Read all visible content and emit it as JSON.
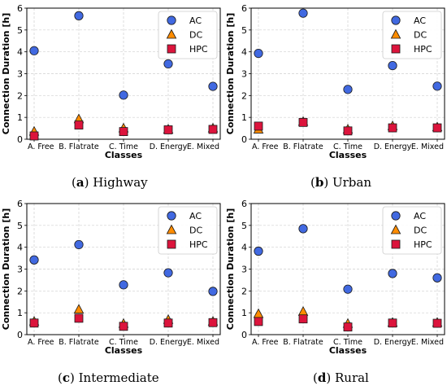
{
  "chart_data": [
    {
      "type": "scatter",
      "caption_letter": "a",
      "caption_name": "Highway",
      "title": "",
      "xlabel": "Classes",
      "ylabel": "Connection Duration [h]",
      "categories": [
        "A. Free",
        "B. Flatrate",
        "C. Time",
        "D. Energy",
        "E. Mixed"
      ],
      "ylim": [
        0,
        6
      ],
      "yticks": [
        0,
        1,
        2,
        3,
        4,
        5,
        6
      ],
      "grid": true,
      "legend_position": "top-right",
      "series": [
        {
          "name": "AC",
          "marker": "circle",
          "color": "#4169e1",
          "values": [
            4.05,
            5.65,
            2.02,
            3.45,
            2.42
          ]
        },
        {
          "name": "DC",
          "marker": "triangle",
          "color": "#ff8c00",
          "values": [
            0.35,
            0.92,
            0.5,
            0.45,
            0.5
          ]
        },
        {
          "name": "HPC",
          "marker": "square",
          "color": "#dc143c",
          "values": [
            0.15,
            0.65,
            0.35,
            0.43,
            0.45
          ]
        }
      ]
    },
    {
      "type": "scatter",
      "caption_letter": "b",
      "caption_name": "Urban",
      "title": "",
      "xlabel": "Classes",
      "ylabel": "Connection Duration [h]",
      "categories": [
        "A. Free",
        "B. Flatrate",
        "C. Time",
        "D. Energy",
        "E. Mixed"
      ],
      "ylim": [
        0,
        6
      ],
      "yticks": [
        0,
        1,
        2,
        3,
        4,
        5,
        6
      ],
      "grid": true,
      "legend_position": "top-right",
      "series": [
        {
          "name": "AC",
          "marker": "circle",
          "color": "#4169e1",
          "values": [
            3.93,
            5.77,
            2.28,
            3.37,
            2.43
          ]
        },
        {
          "name": "DC",
          "marker": "triangle",
          "color": "#ff8c00",
          "values": [
            0.45,
            0.8,
            0.45,
            0.6,
            0.55
          ]
        },
        {
          "name": "HPC",
          "marker": "square",
          "color": "#dc143c",
          "values": [
            0.6,
            0.77,
            0.38,
            0.52,
            0.52
          ]
        }
      ]
    },
    {
      "type": "scatter",
      "caption_letter": "c",
      "caption_name": "Intermediate",
      "title": "",
      "xlabel": "Classes",
      "ylabel": "Connection Duration [h]",
      "categories": [
        "A. Free",
        "B. Flatrate",
        "C. Time",
        "D. Energy",
        "E. Mixed"
      ],
      "ylim": [
        0,
        6
      ],
      "yticks": [
        0,
        1,
        2,
        3,
        4,
        5,
        6
      ],
      "grid": true,
      "legend_position": "top-right",
      "series": [
        {
          "name": "AC",
          "marker": "circle",
          "color": "#4169e1",
          "values": [
            3.42,
            4.12,
            2.28,
            2.83,
            1.98
          ]
        },
        {
          "name": "DC",
          "marker": "triangle",
          "color": "#ff8c00",
          "values": [
            0.6,
            1.15,
            0.5,
            0.68,
            0.6
          ]
        },
        {
          "name": "HPC",
          "marker": "square",
          "color": "#dc143c",
          "values": [
            0.53,
            0.75,
            0.38,
            0.53,
            0.55
          ]
        }
      ]
    },
    {
      "type": "scatter",
      "caption_letter": "d",
      "caption_name": "Rural",
      "title": "",
      "xlabel": "Classes",
      "ylabel": "Connection Duration [h]",
      "categories": [
        "A. Free",
        "B. Flatrate",
        "C. Time",
        "D. Energy",
        "E. Mixed"
      ],
      "ylim": [
        0,
        6
      ],
      "yticks": [
        0,
        1,
        2,
        3,
        4,
        5,
        6
      ],
      "grid": true,
      "legend_position": "top-right",
      "series": [
        {
          "name": "AC",
          "marker": "circle",
          "color": "#4169e1",
          "values": [
            3.82,
            4.85,
            2.08,
            2.8,
            2.6
          ]
        },
        {
          "name": "DC",
          "marker": "triangle",
          "color": "#ff8c00",
          "values": [
            0.95,
            1.05,
            0.5,
            0.55,
            0.55
          ]
        },
        {
          "name": "HPC",
          "marker": "square",
          "color": "#dc143c",
          "values": [
            0.6,
            0.72,
            0.35,
            0.53,
            0.52
          ]
        }
      ]
    }
  ]
}
